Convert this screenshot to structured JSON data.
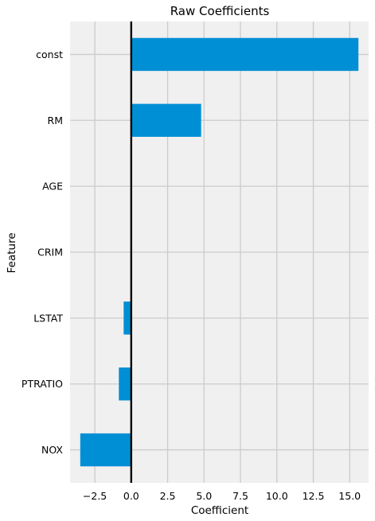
{
  "chart_data": {
    "type": "bar",
    "orientation": "horizontal",
    "title": "Raw Coefficients",
    "xlabel": "Coefficient",
    "ylabel": "Feature",
    "categories": [
      "const",
      "RM",
      "AGE",
      "CRIM",
      "LSTAT",
      "PTRATIO",
      "NOX"
    ],
    "values": [
      15.6,
      4.8,
      0.01,
      -0.05,
      -0.52,
      -0.85,
      -3.5
    ],
    "xlim": [
      -4.2,
      16.3
    ],
    "xticks": [
      -2.5,
      0.0,
      2.5,
      5.0,
      7.5,
      10.0,
      12.5,
      15.0
    ],
    "xtick_labels": [
      "−2.5",
      "0.0",
      "2.5",
      "5.0",
      "7.5",
      "10.0",
      "12.5",
      "15.0"
    ],
    "grid": true,
    "zero_line": true,
    "colors": {
      "bar": "#008fd5",
      "plot_background": "#f0f0f0",
      "grid": "#cbcbcb",
      "zero_line": "#000000"
    }
  }
}
